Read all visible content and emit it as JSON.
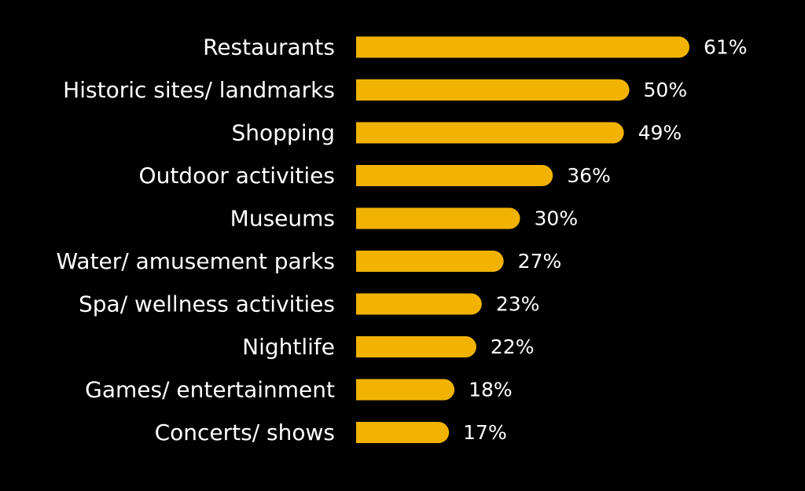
{
  "chart_data": {
    "type": "bar",
    "orientation": "horizontal",
    "categories": [
      "Restaurants",
      "Historic sites/ landmarks",
      "Shopping",
      "Outdoor activities",
      "Museums",
      "Water/ amusement parks",
      "Spa/ wellness activities",
      "Nightlife",
      "Games/ entertainment",
      "Concerts/ shows"
    ],
    "values": [
      61,
      50,
      49,
      36,
      30,
      27,
      23,
      22,
      18,
      17
    ],
    "value_labels": [
      "61%",
      "50%",
      "49%",
      "36%",
      "30%",
      "27%",
      "23%",
      "22%",
      "18%",
      "17%"
    ],
    "title": "",
    "xlabel": "",
    "ylabel": "",
    "xlim": [
      0,
      61
    ],
    "grid": false,
    "legend": "none",
    "colors": {
      "bar": "#f2b300",
      "text": "#ffffff",
      "background": "#000000"
    }
  }
}
